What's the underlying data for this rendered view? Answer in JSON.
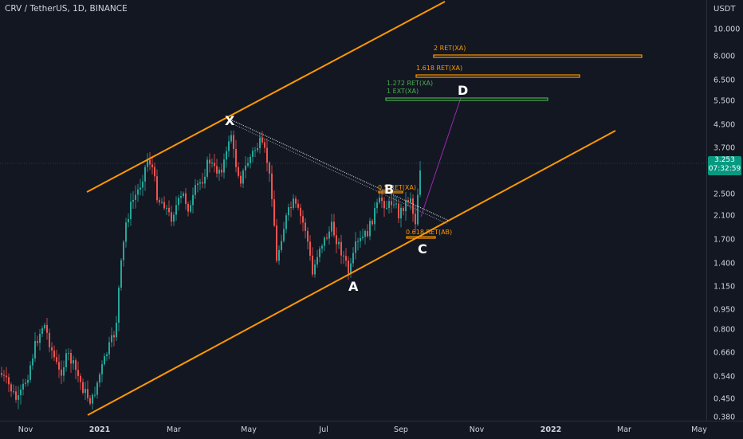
{
  "header": {
    "ticker": "CRV / TetherUS, 1D, BINANCE"
  },
  "price_axis": {
    "unit": "USDT",
    "ticks": [
      "10.000",
      "8.000",
      "6.500",
      "5.500",
      "4.500",
      "3.700",
      "2.500",
      "2.100",
      "1.700",
      "1.400",
      "1.150",
      "0.950",
      "0.800",
      "0.660",
      "0.540",
      "0.450",
      "0.380"
    ],
    "current_price": "3.253",
    "countdown": "07:32:59"
  },
  "time_axis": {
    "ticks": [
      "Nov",
      "2021",
      "Mar",
      "May",
      "Jul",
      "Sep",
      "Nov",
      "2022",
      "Mar",
      "May"
    ]
  },
  "pattern": {
    "points": {
      "x": "X",
      "a": "A",
      "b": "B",
      "c": "C",
      "d": "D"
    },
    "fib_labels": {
      "ret_2": "2 RET(XA)",
      "ret_1618": "1.618 RET(XA)",
      "ret_1272": "1.272 RET(XA)",
      "ext_1": "1 EXT(XA)",
      "ret_b": "0.5 RET(XA)",
      "ret_c": "0.618 RET(AB)"
    }
  },
  "colors": {
    "background": "#131722",
    "bull": "#26a69a",
    "bear": "#ef5350",
    "channel": "#ff9800",
    "fib_orange": "#ff9800",
    "fib_green": "#4caf50",
    "pattern_line": "#9c27b0",
    "price_badge": "#089981"
  }
}
